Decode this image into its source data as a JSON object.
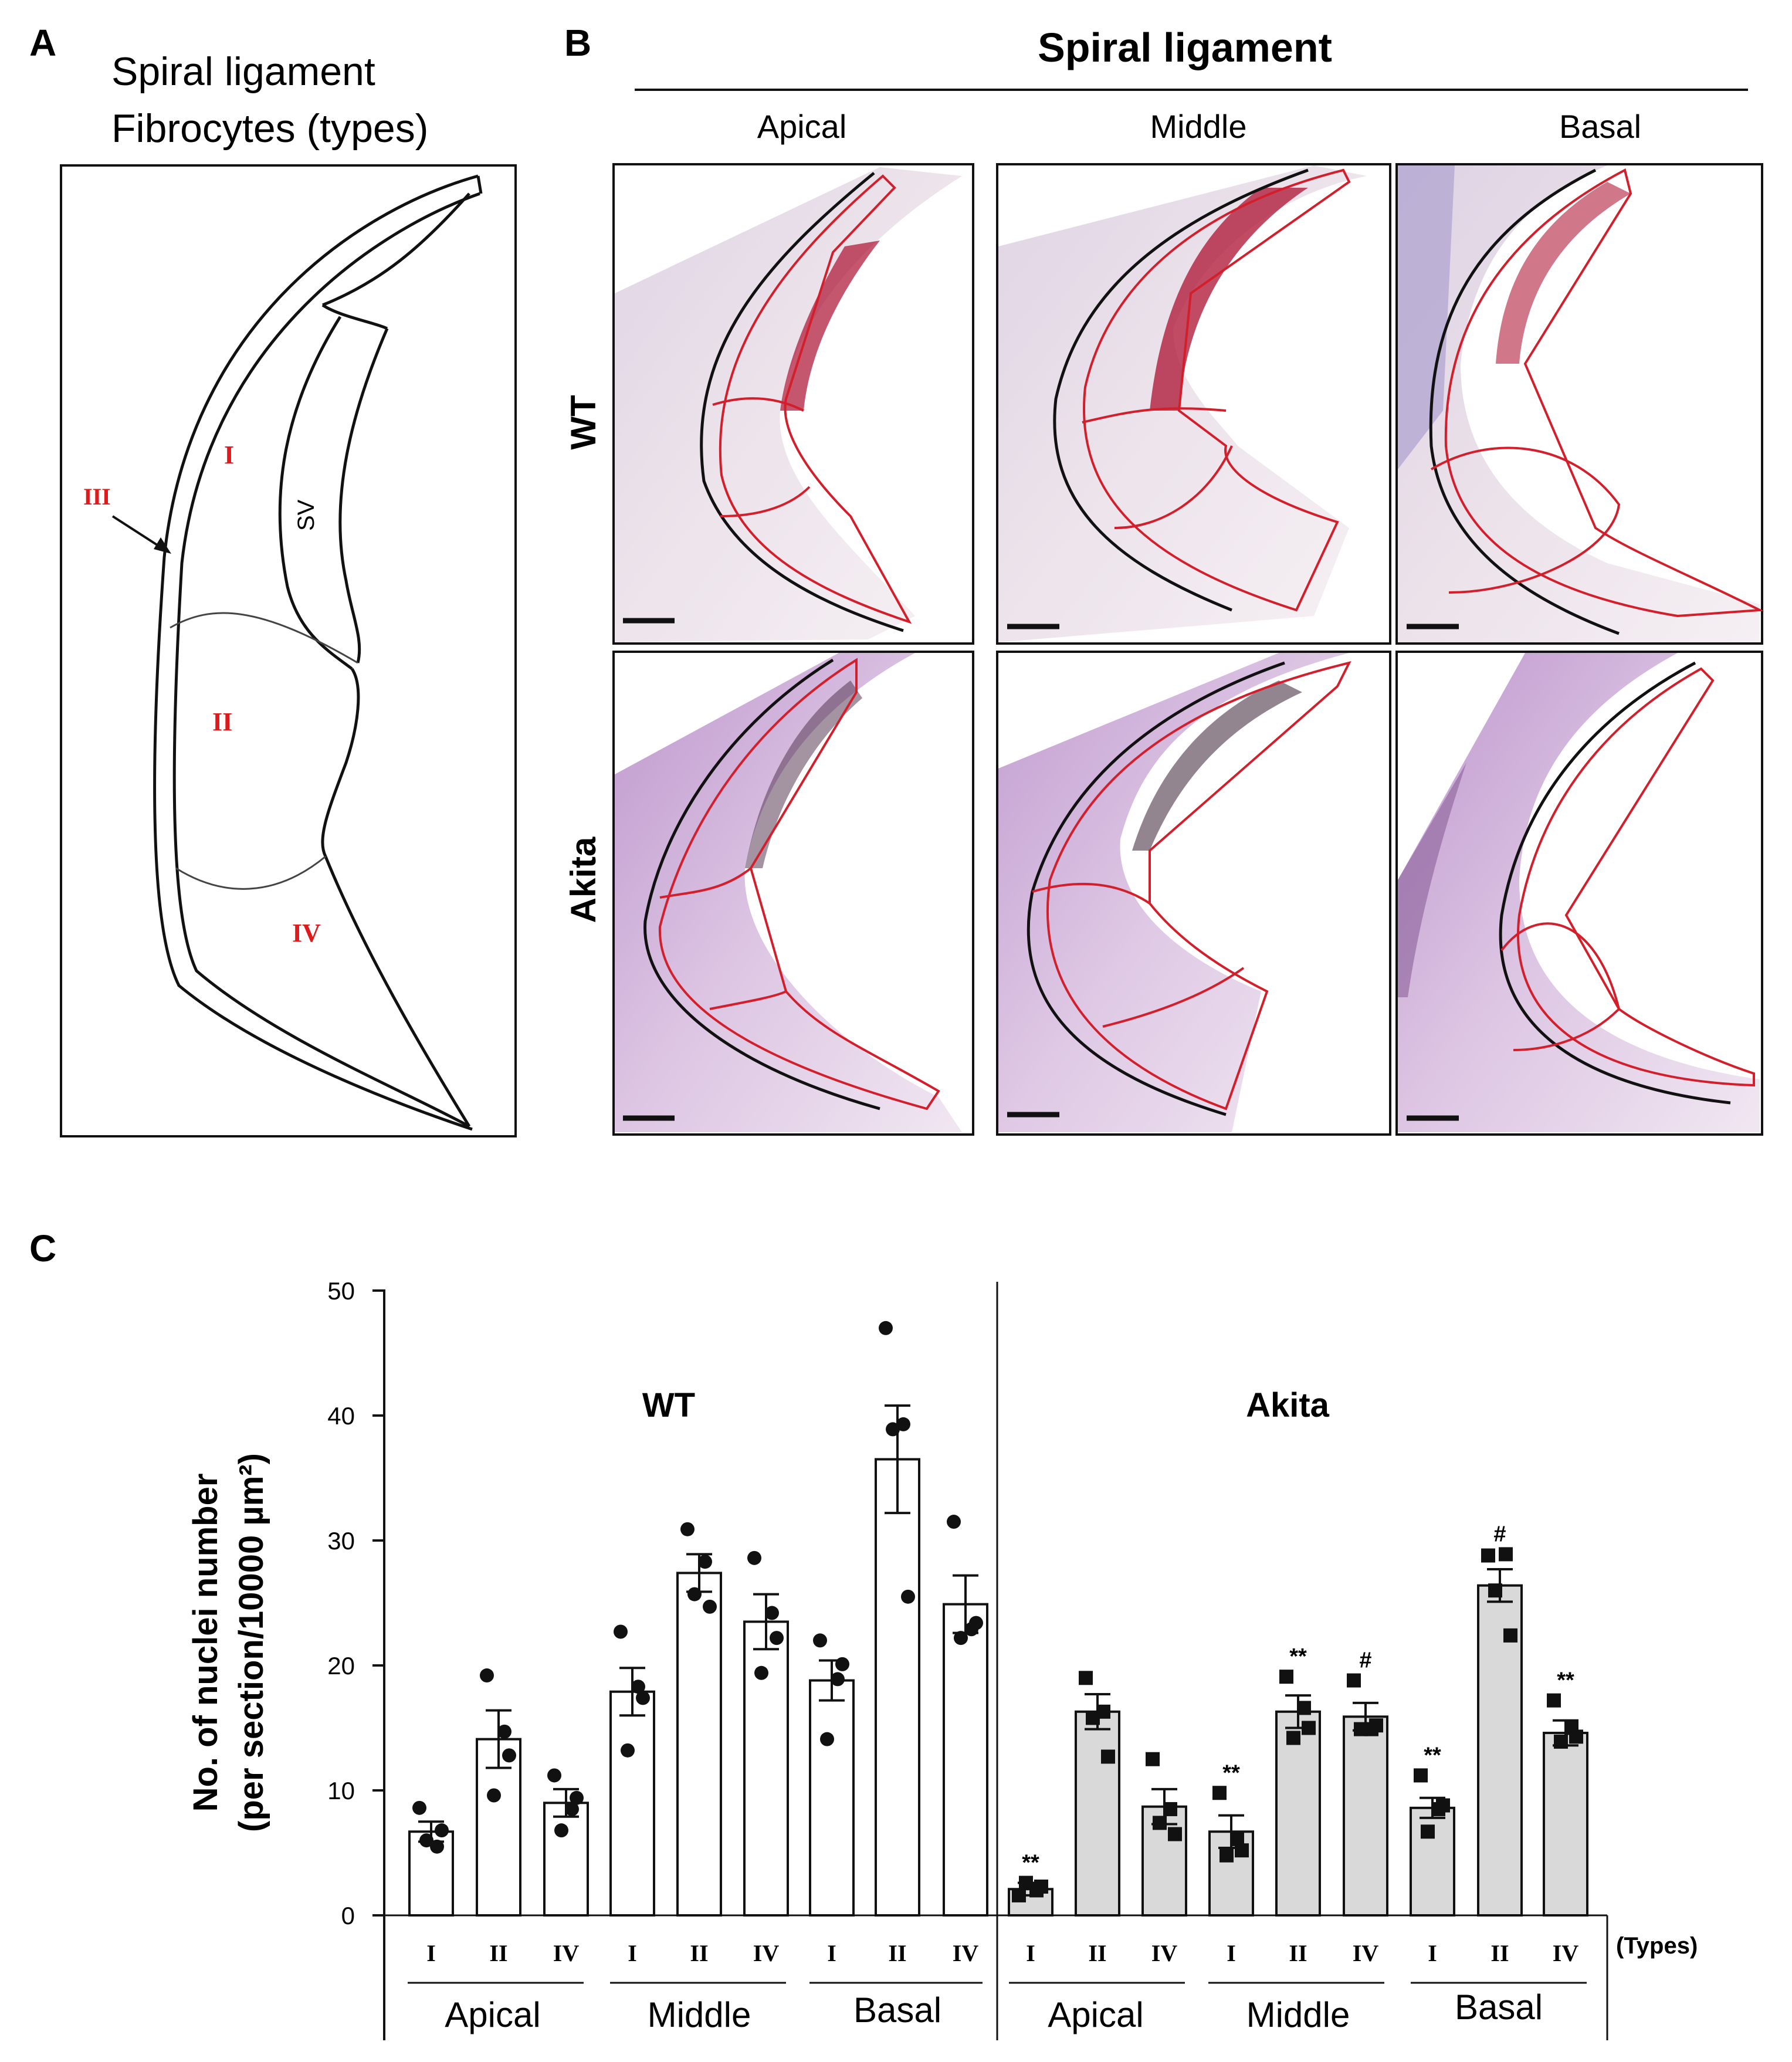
{
  "panel_a": {
    "letter": "A",
    "title_line1": "Spiral ligament",
    "title_line2": "Fibrocytes (types)",
    "regions": [
      "I",
      "II",
      "III",
      "IV"
    ],
    "sv_label": "SV"
  },
  "panel_b": {
    "letter": "B",
    "title": "Spiral ligament",
    "columns": [
      "Apical",
      "Middle",
      "Basal"
    ],
    "rows": [
      "WT",
      "Akita"
    ]
  },
  "panel_c": {
    "letter": "C",
    "types_note": "(Types)"
  },
  "chart_data": {
    "type": "bar",
    "ylabel_line1": "No. of nuclei number",
    "ylabel_line2": "(per section/10000 µm²)",
    "ylim": [
      0,
      50
    ],
    "yticks": [
      "0",
      "10",
      "20",
      "30",
      "40",
      "50"
    ],
    "type_labels": [
      "I",
      "II",
      "IV",
      "I",
      "II",
      "IV",
      "I",
      "II",
      "IV",
      "I",
      "II",
      "IV",
      "I",
      "II",
      "IV",
      "I",
      "II",
      "IV"
    ],
    "group_labels": [
      "Apical",
      "Middle",
      "Basal",
      "Apical",
      "Middle",
      "Basal"
    ],
    "series": [
      {
        "name": "WT",
        "fill": "#ffffff",
        "marker": "circle",
        "values": [
          6.7,
          14.1,
          9.0,
          17.9,
          27.4,
          23.5,
          18.8,
          36.5,
          24.9
        ],
        "errors": [
          0.8,
          2.3,
          1.1,
          1.9,
          1.5,
          2.2,
          1.6,
          4.3,
          2.3
        ],
        "points": [
          [
            8.6,
            5.5,
            6.0,
            6.8
          ],
          [
            19.2,
            14.7,
            9.6,
            12.8
          ],
          [
            11.2,
            8.5,
            6.8,
            9.4
          ],
          [
            22.7,
            18.3,
            13.2,
            17.4
          ],
          [
            30.9,
            28.3,
            25.7,
            24.7
          ],
          [
            28.6,
            24.2,
            19.4,
            22.2
          ],
          [
            22.0,
            18.9,
            14.1,
            20.1
          ],
          [
            47.0,
            39.3,
            38.9,
            25.5
          ],
          [
            31.5,
            22.9,
            22.2,
            23.4
          ]
        ]
      },
      {
        "name": "Akita",
        "fill": "#d9d9d9",
        "marker": "square",
        "values": [
          2.1,
          16.3,
          8.7,
          6.7,
          16.3,
          15.9,
          8.6,
          26.4,
          14.6
        ],
        "errors": [
          0.5,
          1.4,
          1.4,
          1.3,
          1.3,
          1.1,
          0.8,
          1.3,
          1.0
        ],
        "points": [
          [
            1.6,
            2.0,
            2.6,
            2.3
          ],
          [
            19.0,
            16.3,
            15.8,
            12.7
          ],
          [
            12.5,
            8.5,
            7.4,
            6.5
          ],
          [
            9.8,
            6.1,
            4.8,
            5.2
          ],
          [
            19.1,
            16.6,
            14.2,
            15.0
          ],
          [
            18.8,
            14.9,
            14.9,
            15.2
          ],
          [
            11.2,
            8.5,
            6.7,
            8.8
          ],
          [
            28.8,
            28.9,
            26.0,
            22.4
          ],
          [
            17.2,
            15.0,
            13.9,
            14.3
          ]
        ],
        "annotations": [
          "**",
          "",
          "",
          "**",
          "**",
          "#",
          "**",
          "#",
          "**"
        ]
      }
    ]
  }
}
